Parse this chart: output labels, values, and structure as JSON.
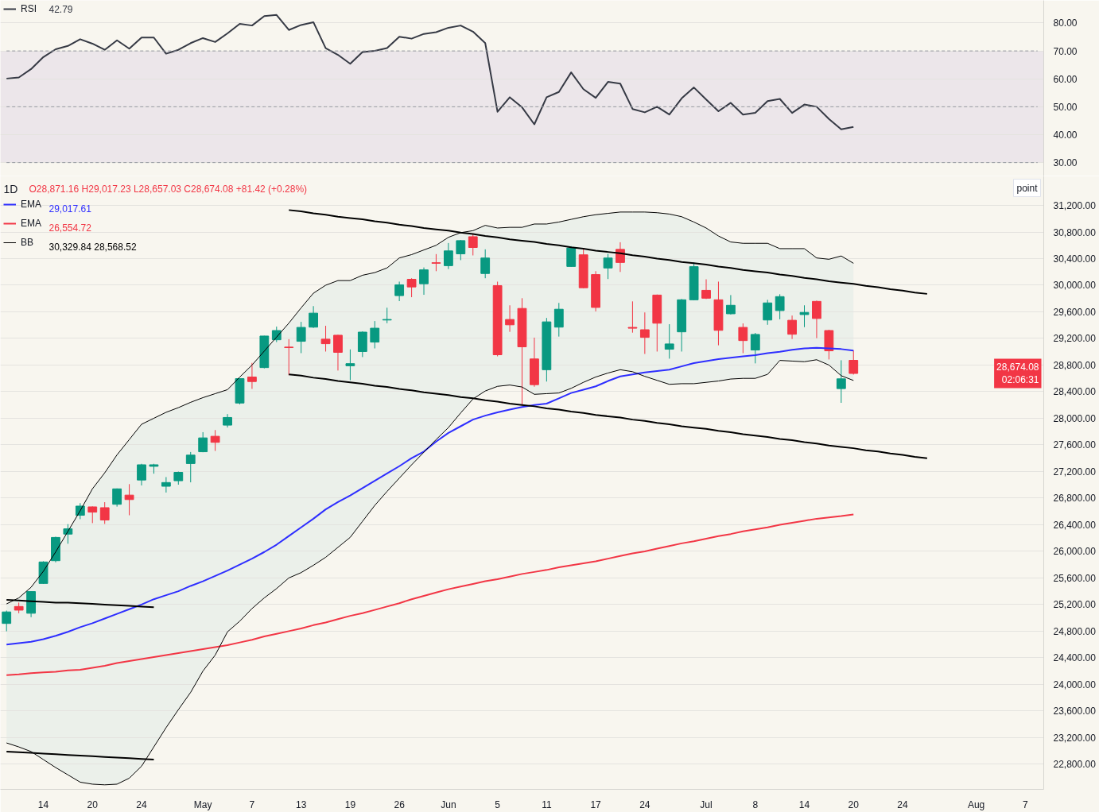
{
  "chart_data": [
    {
      "type": "line",
      "categories": [
        null,
        null,
        null,
        null,
        null,
        null,
        null,
        null,
        null,
        null,
        null,
        null,
        null,
        null,
        null,
        null,
        null,
        null,
        null,
        null,
        null,
        null,
        null,
        null,
        null,
        null,
        null,
        null,
        null,
        null,
        null,
        null,
        null,
        null,
        null,
        null,
        null,
        null,
        null,
        null,
        null,
        null,
        null,
        null,
        null,
        null,
        null,
        null,
        null,
        null,
        null,
        null,
        null,
        null,
        null,
        null,
        null,
        null,
        null,
        null,
        null,
        null,
        null,
        null,
        null,
        null,
        null,
        null,
        null,
        null,
        null,
        null,
        null,
        null,
        null,
        null,
        null,
        null,
        null,
        null,
        null,
        null,
        null,
        null,
        null
      ],
      "series": [
        {
          "name": "RSI",
          "type": "line",
          "color": "#363a45",
          "values": [
            60.1,
            60.5,
            63.5,
            67.8,
            70.6,
            71.8,
            74.2,
            72.6,
            70.4,
            73.8,
            70.8,
            74.8,
            74.8,
            69.0,
            70.4,
            72.8,
            74.6,
            73.2,
            76.3,
            79.7,
            79.1,
            82.5,
            82.9,
            77.5,
            79.3,
            80.3,
            71.0,
            68.6,
            65.4,
            69.6,
            70.0,
            71.0,
            75.1,
            74.4,
            76.1,
            76.7,
            78.3,
            79.1,
            76.9,
            72.8,
            48.2,
            53.4,
            49.8,
            43.7,
            53.4,
            55.3,
            62.3,
            56.3,
            53.2,
            58.9,
            58.3,
            49.2,
            48.0,
            50.0,
            47.2,
            53.0,
            56.9,
            52.6,
            48.4,
            51.4,
            47.2,
            47.8,
            52.0,
            52.8,
            47.8,
            50.8,
            50.0,
            45.6,
            41.9,
            42.79,
            null,
            null,
            null,
            null,
            null,
            null,
            null,
            null,
            null,
            null,
            null,
            null,
            null,
            null,
            null
          ]
        },
        {
          "type": "line",
          "color": "#9598a1",
          "line_style": "dashed",
          "values": [
            70,
            70,
            70,
            70,
            70,
            70,
            70,
            70,
            70,
            70,
            70,
            70,
            70,
            70,
            70,
            70,
            70,
            70,
            70,
            70,
            70,
            70,
            70,
            70,
            70,
            70,
            70,
            70,
            70,
            70,
            70,
            70,
            70,
            70,
            70,
            70,
            70,
            70,
            70,
            70,
            70,
            70,
            70,
            70,
            70,
            70,
            70,
            70,
            70,
            70,
            70,
            70,
            70,
            70,
            70,
            70,
            70,
            70,
            70,
            70,
            70,
            70,
            70,
            70,
            70,
            70,
            70,
            70,
            70,
            70,
            70,
            70,
            70,
            70,
            70,
            70,
            70,
            70,
            70,
            70,
            70,
            70,
            70,
            70,
            70
          ]
        },
        {
          "type": "line",
          "color": "#9598a1",
          "line_style": "dashed",
          "values": [
            50,
            50,
            50,
            50,
            50,
            50,
            50,
            50,
            50,
            50,
            50,
            50,
            50,
            50,
            50,
            50,
            50,
            50,
            50,
            50,
            50,
            50,
            50,
            50,
            50,
            50,
            50,
            50,
            50,
            50,
            50,
            50,
            50,
            50,
            50,
            50,
            50,
            50,
            50,
            50,
            50,
            50,
            50,
            50,
            50,
            50,
            50,
            50,
            50,
            50,
            50,
            50,
            50,
            50,
            50,
            50,
            50,
            50,
            50,
            50,
            50,
            50,
            50,
            50,
            50,
            50,
            50,
            50,
            50,
            50,
            50,
            50,
            50,
            50,
            50,
            50,
            50,
            50,
            50,
            50,
            50,
            50,
            50,
            50,
            50
          ]
        },
        {
          "type": "line",
          "color": "#9598a1",
          "line_style": "dashed",
          "values": [
            30,
            30,
            30,
            30,
            30,
            30,
            30,
            30,
            30,
            30,
            30,
            30,
            30,
            30,
            30,
            30,
            30,
            30,
            30,
            30,
            30,
            30,
            30,
            30,
            30,
            30,
            30,
            30,
            30,
            30,
            30,
            30,
            30,
            30,
            30,
            30,
            30,
            30,
            30,
            30,
            30,
            30,
            30,
            30,
            30,
            30,
            30,
            30,
            30,
            30,
            30,
            30,
            30,
            30,
            30,
            30,
            30,
            30,
            30,
            30,
            30,
            30,
            30,
            30,
            30,
            30,
            30,
            30,
            30,
            30,
            30,
            30,
            30,
            30,
            30,
            30,
            30,
            30,
            30,
            30,
            30,
            30,
            30,
            30,
            30
          ]
        }
      ],
      "annotations": [
        "42.79"
      ],
      "tick_labels": "y",
      "ylim": [
        25.2,
        88.1
      ],
      "yticks": [
        {
          "value": 30,
          "label": "30.00"
        },
        {
          "value": 40,
          "label": "40.00"
        },
        {
          "value": 50,
          "label": "50.00"
        },
        {
          "value": 60,
          "label": "60.00"
        },
        {
          "value": 70,
          "label": "70.00"
        },
        {
          "value": 80,
          "label": "80.00"
        }
      ],
      "grid": "y",
      "legend": "top left",
      "bands": [
        {
          "axis": "y",
          "from": 30,
          "to": 70,
          "color": "#ece6ea"
        }
      ]
    },
    {
      "type": "candlestick",
      "title": "1D",
      "categories": [
        null,
        null,
        null,
        "14",
        null,
        null,
        null,
        "20",
        null,
        null,
        null,
        "24",
        null,
        null,
        null,
        null,
        "May",
        null,
        null,
        null,
        "7",
        null,
        null,
        null,
        "13",
        null,
        null,
        null,
        "19",
        null,
        null,
        null,
        "26",
        null,
        null,
        null,
        "Jun",
        null,
        null,
        null,
        "5",
        null,
        null,
        null,
        "11",
        null,
        null,
        null,
        "17",
        null,
        null,
        null,
        "24",
        null,
        null,
        null,
        null,
        "Jul",
        null,
        null,
        null,
        "8",
        null,
        null,
        null,
        "14",
        null,
        null,
        null,
        "20",
        null,
        null,
        null,
        "24",
        null,
        null,
        null,
        null,
        null,
        "Aug",
        null,
        null,
        null,
        "7",
        null
      ],
      "ohlc": [
        [
          24916,
          25109,
          24798,
          25089
        ],
        [
          25171,
          25230,
          25069,
          25116
        ],
        [
          25069,
          25400,
          25010,
          25395
        ],
        [
          25517,
          25850,
          25510,
          25840
        ],
        [
          25859,
          26220,
          25835,
          26209
        ],
        [
          26259,
          26409,
          26114,
          26338
        ],
        [
          26542,
          26724,
          26483,
          26680
        ],
        [
          26668,
          26675,
          26424,
          26589
        ],
        [
          26656,
          26739,
          26412,
          26471
        ],
        [
          26707,
          26945,
          26672,
          26939
        ],
        [
          26845,
          27010,
          26542,
          26778
        ],
        [
          27072,
          27316,
          26990,
          27301
        ],
        [
          27278,
          27316,
          27167,
          27301
        ],
        [
          26978,
          27116,
          26884,
          27034
        ],
        [
          27061,
          27199,
          27002,
          27187
        ],
        [
          27320,
          27493,
          27037,
          27446
        ],
        [
          27497,
          27791,
          27490,
          27705
        ],
        [
          27729,
          27823,
          27509,
          27638
        ],
        [
          27897,
          28063,
          27861,
          28012
        ],
        [
          28229,
          28600,
          28209,
          28596
        ],
        [
          28620,
          28833,
          28442,
          28552
        ],
        [
          28762,
          29240,
          28750,
          29236
        ],
        [
          29180,
          29378,
          29145,
          29319
        ],
        [
          29070,
          29189,
          28647,
          29062
        ],
        [
          29157,
          29449,
          28979,
          29366
        ],
        [
          29370,
          29686,
          29358,
          29580
        ],
        [
          29189,
          29390,
          29003,
          29121
        ],
        [
          29248,
          29255,
          28718,
          28991
        ],
        [
          28789,
          29035,
          28572,
          28821
        ],
        [
          29003,
          29307,
          28920,
          29295
        ],
        [
          29145,
          29461,
          29050,
          29354
        ],
        [
          29477,
          29662,
          29429,
          29485
        ],
        [
          29844,
          30054,
          29761,
          30006
        ],
        [
          30089,
          30105,
          29820,
          29974
        ],
        [
          30022,
          30267,
          29856,
          30231
        ],
        [
          30338,
          30468,
          30211,
          30330
        ],
        [
          30294,
          30634,
          30243,
          30516
        ],
        [
          30472,
          30680,
          30377,
          30670
        ],
        [
          30729,
          30768,
          30448,
          30567
        ],
        [
          30176,
          30539,
          30105,
          30409
        ],
        [
          29994,
          30054,
          28931,
          28955
        ],
        [
          29485,
          29698,
          29299,
          29405
        ],
        [
          29651,
          29805,
          28190,
          29074
        ],
        [
          28892,
          29212,
          28474,
          28505
        ],
        [
          28730,
          29508,
          28552,
          29449
        ],
        [
          29370,
          29734,
          29228,
          29639
        ],
        [
          30282,
          30587,
          30275,
          30560
        ],
        [
          30457,
          30560,
          29955,
          29962
        ],
        [
          30160,
          30211,
          29607,
          29666
        ],
        [
          30259,
          30472,
          30093,
          30409
        ],
        [
          30539,
          30646,
          30199,
          30342
        ],
        [
          29366,
          29757,
          29287,
          29354
        ],
        [
          29331,
          29591,
          28967,
          29216
        ],
        [
          29852,
          29860,
          29003,
          29429
        ],
        [
          29038,
          29414,
          28896,
          29117
        ],
        [
          29299,
          29793,
          29003,
          29781
        ],
        [
          29781,
          30342,
          29773,
          30279
        ],
        [
          29923,
          30089,
          29793,
          29805
        ],
        [
          29781,
          30054,
          29097,
          29322
        ],
        [
          29571,
          29852,
          29559,
          29698
        ],
        [
          29366,
          29426,
          28979,
          29168
        ],
        [
          29026,
          29283,
          28825,
          29260
        ],
        [
          29477,
          29781,
          29405,
          29734
        ],
        [
          29619,
          29864,
          29488,
          29829
        ],
        [
          29473,
          29544,
          29192,
          29263
        ],
        [
          29559,
          29698,
          29370,
          29591
        ],
        [
          29757,
          29769,
          29204,
          29500
        ],
        [
          29319,
          29331,
          28884,
          29014
        ],
        [
          28446,
          28872,
          28232,
          28593
        ],
        [
          28871.16,
          29017.23,
          28657.03,
          28674.08
        ],
        null,
        null,
        null,
        null,
        null,
        null,
        null,
        null,
        null,
        null,
        null,
        null,
        null,
        null,
        null
      ],
      "colors": [
        "#089981",
        "#f23645",
        "#089981",
        "#089981",
        "#089981",
        "#089981",
        "#089981",
        "#f23645",
        "#f23645",
        "#089981",
        "#f23645",
        "#089981",
        "#089981",
        "#089981",
        "#089981",
        "#089981",
        "#089981",
        "#f23645",
        "#089981",
        "#089981",
        "#f23645",
        "#089981",
        "#089981",
        "#f23645",
        "#089981",
        "#089981",
        "#f23645",
        "#f23645",
        "#089981",
        "#089981",
        "#089981",
        "#089981",
        "#089981",
        "#f23645",
        "#089981",
        "#f23645",
        "#089981",
        "#089981",
        "#f23645",
        "#089981",
        "#f23645",
        "#f23645",
        "#f23645",
        "#f23645",
        "#089981",
        "#089981",
        "#089981",
        "#f23645",
        "#f23645",
        "#089981",
        "#f23645",
        "#f23645",
        "#f23645",
        "#f23645",
        "#089981",
        "#089981",
        "#089981",
        "#f23645",
        "#f23645",
        "#089981",
        "#f23645",
        "#089981",
        "#089981",
        "#089981",
        "#f23645",
        "#089981",
        "#f23645",
        "#f23645",
        "#089981",
        "#f23645",
        null,
        null,
        null,
        null,
        null,
        null,
        null,
        null,
        null,
        null,
        null,
        null,
        null,
        null,
        null
      ],
      "series": [
        {
          "name": "EMA",
          "type": "line",
          "color": "#2e2eff",
          "values": [
            24600,
            24620,
            24640,
            24680,
            24730,
            24790,
            24860,
            24920,
            24990,
            25060,
            25130,
            25200,
            25280,
            25340,
            25400,
            25480,
            25550,
            25630,
            25710,
            25800,
            25890,
            25990,
            26100,
            26230,
            26360,
            26490,
            26630,
            26740,
            26840,
            26950,
            27060,
            27170,
            27280,
            27400,
            27500,
            27650,
            27780,
            27880,
            27980,
            28040,
            28090,
            28130,
            28170,
            28200,
            28220,
            28300,
            28380,
            28430,
            28480,
            28560,
            28630,
            28660,
            28690,
            28710,
            28730,
            28780,
            28830,
            28860,
            28890,
            28910,
            28930,
            28950,
            28980,
            29000,
            29030,
            29050,
            29060,
            29050,
            29040,
            29017.61,
            null,
            null,
            null,
            null,
            null,
            null,
            null,
            null,
            null,
            null,
            null,
            null,
            null,
            null,
            null
          ]
        },
        {
          "name": "EMA",
          "type": "line",
          "color": "#f23645",
          "values": [
            24140,
            24150,
            24170,
            24180,
            24190,
            24210,
            24220,
            24250,
            24280,
            24320,
            24350,
            24380,
            24410,
            24440,
            24470,
            24500,
            24530,
            24560,
            24590,
            24630,
            24670,
            24720,
            24760,
            24800,
            24840,
            24890,
            24930,
            24980,
            25030,
            25070,
            25120,
            25170,
            25220,
            25280,
            25330,
            25380,
            25430,
            25470,
            25510,
            25550,
            25580,
            25620,
            25660,
            25690,
            25720,
            25760,
            25790,
            25820,
            25850,
            25890,
            25930,
            25970,
            26000,
            26040,
            26080,
            26120,
            26150,
            26190,
            26230,
            26260,
            26300,
            26330,
            26360,
            26400,
            26430,
            26460,
            26490,
            26510,
            26530,
            26554.72,
            null,
            null,
            null,
            null,
            null,
            null,
            null,
            null,
            null,
            null,
            null,
            null,
            null,
            null,
            null
          ]
        },
        {
          "name": "BB",
          "type": "line",
          "color": "#000000",
          "values": [
            25210,
            25300,
            25460,
            25700,
            25990,
            26300,
            26610,
            26940,
            27180,
            27450,
            27680,
            27910,
            28000,
            28090,
            28160,
            28240,
            28310,
            28370,
            28430,
            28620,
            28800,
            29010,
            29220,
            29430,
            29660,
            29880,
            30000,
            30070,
            30070,
            30150,
            30190,
            30260,
            30410,
            30460,
            30530,
            30600,
            30720,
            30790,
            30820,
            30900,
            30860,
            30870,
            30870,
            30920,
            30920,
            30950,
            30990,
            31030,
            31060,
            31080,
            31100,
            31100,
            31100,
            31090,
            31070,
            31030,
            30950,
            30860,
            30740,
            30650,
            30630,
            30630,
            30630,
            30550,
            30550,
            30550,
            30410,
            30390,
            30440,
            30329.84,
            null,
            null,
            null,
            null,
            null,
            null,
            null,
            null,
            null,
            null,
            null,
            null,
            null,
            null,
            null
          ],
          "upper": [
            25210,
            25300,
            25460,
            25700,
            25990,
            26300,
            26610,
            26940,
            27180,
            27450,
            27680,
            27910,
            28000,
            28090,
            28160,
            28240,
            28310,
            28370,
            28430,
            28620,
            28800,
            29010,
            29220,
            29430,
            29660,
            29880,
            30000,
            30070,
            30070,
            30150,
            30190,
            30260,
            30410,
            30460,
            30530,
            30600,
            30720,
            30790,
            30820,
            30900,
            30860,
            30870,
            30870,
            30920,
            30920,
            30950,
            30990,
            31030,
            31060,
            31080,
            31100,
            31100,
            31100,
            31090,
            31070,
            31030,
            30950,
            30860,
            30740,
            30650,
            30630,
            30630,
            30630,
            30550,
            30550,
            30550,
            30410,
            30390,
            30440,
            30329.84,
            null,
            null,
            null,
            null,
            null,
            null,
            null,
            null,
            null,
            null,
            null,
            null,
            null,
            null,
            null
          ],
          "lower": [
            23120,
            23060,
            22990,
            22870,
            22750,
            22640,
            22530,
            22500,
            22490,
            22500,
            22590,
            22770,
            23060,
            23350,
            23620,
            23880,
            24200,
            24440,
            24790,
            24950,
            25140,
            25300,
            25440,
            25600,
            25680,
            25790,
            25910,
            26060,
            26210,
            26450,
            26690,
            26900,
            27100,
            27300,
            27490,
            27680,
            27860,
            28080,
            28290,
            28410,
            28480,
            28500,
            28470,
            28360,
            28370,
            28380,
            28450,
            28540,
            28620,
            28680,
            28730,
            28700,
            28630,
            28570,
            28510,
            28520,
            28520,
            28540,
            28560,
            28590,
            28600,
            28600,
            28660,
            28870,
            28860,
            28850,
            28880,
            28800,
            28640,
            28568.52,
            null,
            null,
            null,
            null,
            null,
            null,
            null,
            null,
            null,
            null,
            null,
            null,
            null,
            null,
            null
          ]
        },
        {
          "type": "line",
          "color": "#000000",
          "values": [
            23120,
            23060,
            22990,
            22870,
            22750,
            22640,
            22530,
            22500,
            22490,
            22500,
            22590,
            22770,
            23060,
            23350,
            23620,
            23880,
            24200,
            24440,
            24790,
            24950,
            25140,
            25300,
            25440,
            25600,
            25680,
            25790,
            25910,
            26060,
            26210,
            26450,
            26690,
            26900,
            27100,
            27300,
            27490,
            27680,
            27860,
            28080,
            28290,
            28410,
            28480,
            28500,
            28470,
            28360,
            28370,
            28380,
            28450,
            28540,
            28620,
            28680,
            28730,
            28700,
            28630,
            28570,
            28510,
            28520,
            28520,
            28540,
            28560,
            28590,
            28600,
            28600,
            28660,
            28870,
            28860,
            28850,
            28880,
            28800,
            28640,
            28568.52,
            null,
            null,
            null,
            null,
            null,
            null,
            null,
            null,
            null,
            null,
            null,
            null,
            null,
            null,
            null
          ]
        },
        {
          "type": "line",
          "color": "#000000",
          "values": [
            null,
            null,
            null,
            null,
            null,
            null,
            null,
            null,
            null,
            null,
            null,
            null,
            null,
            null,
            null,
            null,
            null,
            null,
            null,
            null,
            null,
            null,
            null,
            31130,
            31110,
            31080,
            31060,
            31030,
            31010,
            30990,
            30960,
            30940,
            30910,
            30890,
            30860,
            30840,
            30820,
            30790,
            30770,
            30740,
            30720,
            30690,
            30670,
            30650,
            30620,
            30600,
            30570,
            30550,
            30520,
            30500,
            30480,
            30450,
            30430,
            30400,
            30380,
            30350,
            30330,
            30310,
            30280,
            30260,
            30230,
            30210,
            30190,
            30160,
            30140,
            30110,
            30090,
            30060,
            30040,
            30020,
            29990,
            29970,
            29940,
            29920,
            29890,
            29870,
            null,
            null,
            null,
            null,
            null,
            null,
            null,
            null,
            null
          ]
        },
        {
          "type": "line",
          "color": "#000000",
          "values": [
            null,
            null,
            null,
            null,
            null,
            null,
            null,
            null,
            null,
            null,
            null,
            null,
            null,
            null,
            null,
            null,
            null,
            null,
            null,
            null,
            null,
            null,
            null,
            28660,
            28640,
            28610,
            28590,
            28560,
            28540,
            28520,
            28490,
            28470,
            28440,
            28420,
            28390,
            28370,
            28350,
            28320,
            28300,
            28270,
            28250,
            28220,
            28200,
            28180,
            28150,
            28130,
            28100,
            28080,
            28050,
            28030,
            28010,
            27980,
            27960,
            27930,
            27910,
            27880,
            27860,
            27840,
            27810,
            27790,
            27760,
            27740,
            27720,
            27690,
            27670,
            27640,
            27620,
            27590,
            27570,
            27550,
            27520,
            27500,
            27470,
            27450,
            27420,
            27400,
            null,
            null,
            null,
            null,
            null,
            null,
            null,
            null,
            null
          ]
        },
        {
          "type": "line",
          "color": "#000000",
          "values": [
            25270,
            25260,
            25250,
            25240,
            25230,
            25230,
            25220,
            25210,
            25200,
            25190,
            25180,
            25170,
            25160,
            null,
            null,
            null,
            null,
            null,
            null,
            null,
            null,
            null,
            null,
            null,
            null,
            null,
            null,
            null,
            null,
            null,
            null,
            null,
            null,
            null,
            null,
            null,
            null,
            null,
            null,
            null,
            null,
            null,
            null,
            null,
            null,
            null,
            null,
            null,
            null,
            null,
            null,
            null,
            null,
            null,
            null,
            null,
            null,
            null,
            null,
            null,
            null,
            null,
            null,
            null,
            null,
            null,
            null,
            null,
            null,
            null,
            null,
            null,
            null,
            null,
            null,
            null,
            null,
            null,
            null,
            null,
            null,
            null,
            null,
            null,
            null
          ]
        },
        {
          "type": "line",
          "color": "#000000",
          "values": [
            22990,
            22980,
            22970,
            22960,
            22950,
            22940,
            22930,
            22920,
            22910,
            22900,
            22890,
            22880,
            22870,
            null,
            null,
            null,
            null,
            null,
            null,
            null,
            null,
            null,
            null,
            null,
            null,
            null,
            null,
            null,
            null,
            null,
            null,
            null,
            null,
            null,
            null,
            null,
            null,
            null,
            null,
            null,
            null,
            null,
            null,
            null,
            null,
            null,
            null,
            null,
            null,
            null,
            null,
            null,
            null,
            null,
            null,
            null,
            null,
            null,
            null,
            null,
            null,
            null,
            null,
            null,
            null,
            null,
            null,
            null,
            null,
            null,
            null,
            null,
            null,
            null,
            null,
            null,
            null,
            null,
            null,
            null,
            null,
            null,
            null,
            null,
            null
          ]
        }
      ],
      "annotations": [
        "O28,871.16 H29,017.23 L28,657.03 C28,674.08 +81.42 (+0.28%)",
        "29,017.61",
        "26,554.72",
        "30,329.84 28,568.52",
        "28,674.08\n02:06:31"
      ],
      "ylabel": "point",
      "ylim": [
        22422,
        31642
      ],
      "yticks": [
        {
          "value": 22800,
          "label": "22,800.00"
        },
        {
          "value": 23200,
          "label": "23,200.00"
        },
        {
          "value": 23600,
          "label": "23,600.00"
        },
        {
          "value": 24000,
          "label": "24,000.00"
        },
        {
          "value": 24400,
          "label": "24,400.00"
        },
        {
          "value": 24800,
          "label": "24,800.00"
        },
        {
          "value": 25200,
          "label": "25,200.00"
        },
        {
          "value": 25600,
          "label": "25,600.00"
        },
        {
          "value": 26000,
          "label": "26,000.00"
        },
        {
          "value": 26400,
          "label": "26,400.00"
        },
        {
          "value": 26800,
          "label": "26,800.00"
        },
        {
          "value": 27200,
          "label": "27,200.00"
        },
        {
          "value": 27600,
          "label": "27,600.00"
        },
        {
          "value": 28000,
          "label": "28,000.00"
        },
        {
          "value": 28400,
          "label": "28,400.00"
        },
        {
          "value": 28800,
          "label": "28,800.00"
        },
        {
          "value": 29200,
          "label": "29,200.00"
        },
        {
          "value": 29600,
          "label": "29,600.00"
        },
        {
          "value": 30000,
          "label": "30,000.00"
        },
        {
          "value": 30400,
          "label": "30,400.00"
        },
        {
          "value": 30800,
          "label": "30,800.00"
        },
        {
          "value": 31200,
          "label": "31,200.00"
        }
      ],
      "grid": "y",
      "legend": "top left"
    }
  ]
}
